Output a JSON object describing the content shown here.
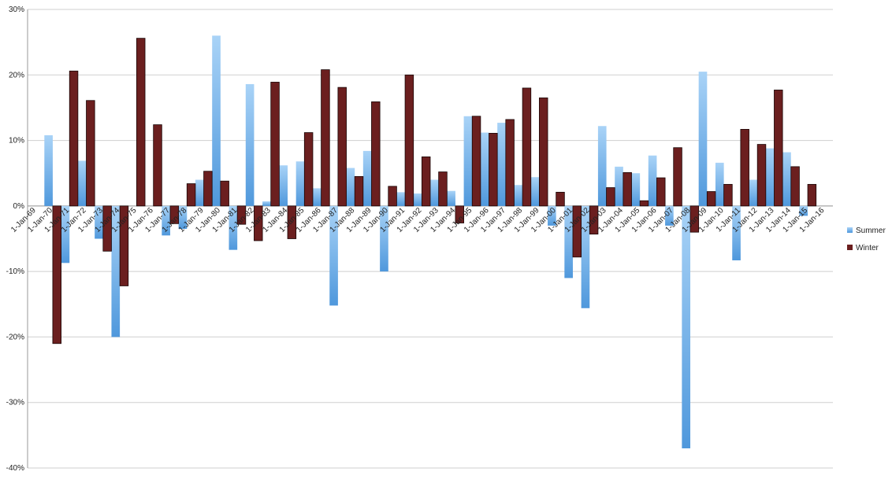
{
  "chart_data": {
    "type": "bar",
    "categories": [
      "1-Jan-69",
      "1-Jan-70",
      "1-Jan-71",
      "1-Jan-72",
      "1-Jan-73",
      "1-Jan-74",
      "1-Jan-75",
      "1-Jan-76",
      "1-Jan-77",
      "1-Jan-78",
      "1-Jan-79",
      "1-Jan-80",
      "1-Jan-81",
      "1-Jan-82",
      "1-Jan-83",
      "1-Jan-84",
      "1-Jan-85",
      "1-Jan-86",
      "1-Jan-87",
      "1-Jan-88",
      "1-Jan-89",
      "1-Jan-90",
      "1-Jan-91",
      "1-Jan-92",
      "1-Jan-93",
      "1-Jan-94",
      "1-Jan-95",
      "1-Jan-96",
      "1-Jan-97",
      "1-Jan-98",
      "1-Jan-99",
      "1-Jan-00",
      "1-Jan-01",
      "1-Jan-02",
      "1-Jan-03",
      "1-Jan-04",
      "1-Jan-05",
      "1-Jan-06",
      "1-Jan-07",
      "1-Jan-08",
      "1-Jan-09",
      "1-Jan-10",
      "1-Jan-11",
      "1-Jan-12",
      "1-Jan-13",
      "1-Jan-14",
      "1-Jan-15",
      "1-Jan-16"
    ],
    "series": [
      {
        "name": "Summer",
        "color": "#6aaee8",
        "values": [
          null,
          10.8,
          -8.7,
          6.9,
          -5,
          -20,
          0,
          0,
          -4.5,
          -3.5,
          4,
          26,
          -6.7,
          18.6,
          0.7,
          6.2,
          6.8,
          2.7,
          -15.2,
          5.8,
          8.4,
          -10,
          2.1,
          1.9,
          4,
          2.3,
          13.7,
          11.2,
          12.7,
          3.2,
          4.4,
          -3,
          -11,
          -15.6,
          12.2,
          6,
          5,
          7.7,
          -3,
          -37,
          20.5,
          6.6,
          -8.3,
          4,
          8.8,
          8.2,
          -1.5,
          null
        ]
      },
      {
        "name": "Winter",
        "color": "#6b1f1f",
        "values": [
          null,
          -21,
          20.6,
          16.1,
          -6.9,
          -12.2,
          25.6,
          12.4,
          -2.7,
          3.4,
          5.3,
          3.8,
          -2.8,
          -5.3,
          18.9,
          -5,
          11.2,
          20.8,
          18.1,
          4.5,
          15.9,
          3,
          20,
          7.5,
          5.2,
          -2.6,
          13.7,
          11.1,
          13.2,
          18,
          16.5,
          2.1,
          -7.8,
          -4.3,
          2.8,
          5.1,
          0.8,
          4.3,
          8.9,
          -4,
          2.2,
          3.3,
          11.7,
          9.4,
          17.7,
          6,
          3.3,
          null
        ]
      }
    ],
    "ylim": [
      -40,
      30
    ],
    "yticks": [
      {
        "value": -40,
        "label": "-40%"
      },
      {
        "value": -30,
        "label": "-30%"
      },
      {
        "value": -20,
        "label": "-20%"
      },
      {
        "value": -10,
        "label": "-10%"
      },
      {
        "value": 0,
        "label": "0%"
      },
      {
        "value": 10,
        "label": "10%"
      },
      {
        "value": 20,
        "label": "20%"
      },
      {
        "value": 30,
        "label": "30%"
      }
    ],
    "grid": true,
    "legend": "right"
  }
}
